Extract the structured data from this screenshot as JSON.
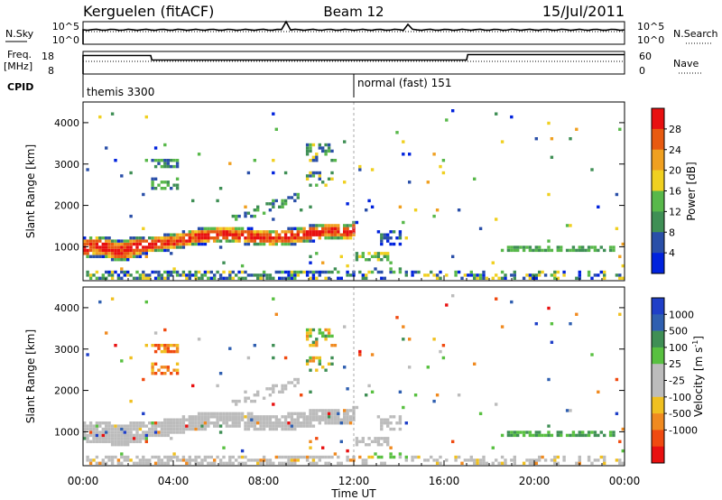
{
  "header": {
    "station": "Kerguelen (fitACF)",
    "beam": "Beam 12",
    "date": "15/Jul/2011"
  },
  "noise_panel": {
    "left_label": "N.Sky",
    "right_label": "N.Search",
    "ticks_left": [
      "10^5",
      "10^0"
    ],
    "ticks_right": [
      "10^5",
      "10^0"
    ]
  },
  "freq_panel": {
    "left_label_1": "Freq.",
    "left_label_2": "[MHz]",
    "right_label": "Nave",
    "ticks_left": [
      "18",
      "8"
    ],
    "ticks_right": [
      "60",
      "0"
    ]
  },
  "cpid": {
    "label": "CPID",
    "modes": [
      {
        "name": "themis 3300",
        "start_hour": 0
      },
      {
        "name": "normal (fast) 151",
        "start_hour": 12
      }
    ]
  },
  "colors": {
    "power_scale": [
      "#0022dd",
      "#2a4fa8",
      "#3f8f55",
      "#58b84a",
      "#f0d020",
      "#f0a020",
      "#e85a10",
      "#e81010"
    ],
    "velocity_scale": [
      "#e81010",
      "#f04a10",
      "#f08a20",
      "#f0c020",
      "#bcbcbc",
      "#bcbcbc",
      "#58c040",
      "#3f8f55",
      "#2f5fb0",
      "#1f3fc8"
    ],
    "ground_scatter": "#bcbcbc"
  },
  "chart_data": [
    {
      "type": "heatmap",
      "name": "power",
      "ylabel": "Slant Range [km]",
      "ylim": [
        180,
        4500
      ],
      "yticks": [
        "1000",
        "2000",
        "3000",
        "4000"
      ],
      "colorbar_label": "Power [dB]",
      "colorbar_ticks": [
        "4",
        "8",
        "12",
        "16",
        "20",
        "24",
        "28"
      ],
      "colorbar_range": [
        0,
        32
      ]
    },
    {
      "type": "heatmap",
      "name": "velocity",
      "ylabel": "Slant Range [km]",
      "ylim": [
        180,
        4500
      ],
      "yticks": [
        "1000",
        "2000",
        "3000",
        "4000"
      ],
      "colorbar_label": "Velocity [m s",
      "colorbar_label_sup": "-1",
      "colorbar_label_end": "]",
      "colorbar_ticks": [
        "1000",
        "500",
        "100",
        "25",
        "-25",
        "-100",
        "-500",
        "-1000"
      ]
    },
    {
      "type": "line",
      "name": "frequency",
      "ylim": [
        8,
        18
      ],
      "x": [
        0,
        3,
        3.05,
        17,
        17.05,
        24
      ],
      "values": [
        16.2,
        16.2,
        14.2,
        14.2,
        16.6,
        16.6
      ]
    }
  ],
  "time_axis": {
    "label": "Time UT",
    "xlim": [
      0,
      24
    ],
    "ticks": [
      "00:00",
      "04:00",
      "08:00",
      "12:00",
      "16:00",
      "20:00",
      "00:00"
    ]
  }
}
